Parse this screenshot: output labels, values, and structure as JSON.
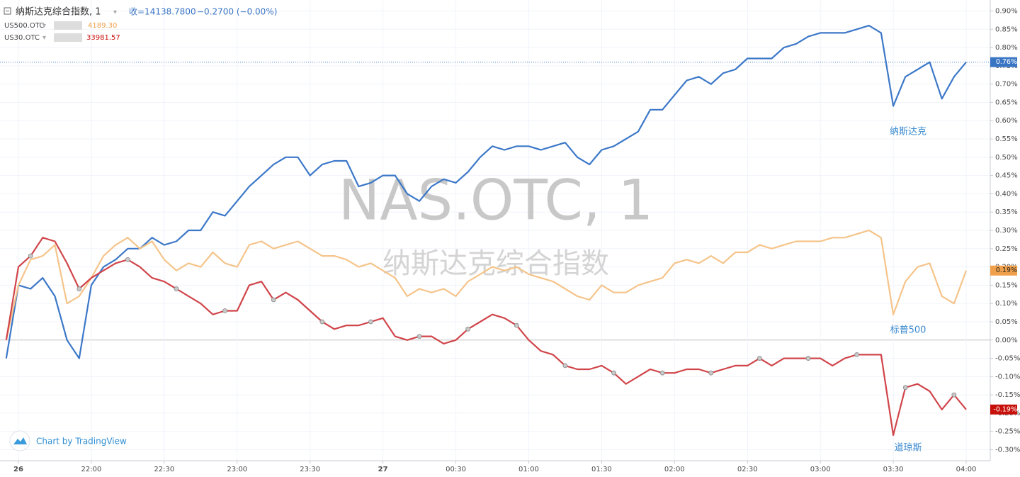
{
  "chart_data": {
    "type": "line",
    "watermark": "NAS.OTC, 1",
    "watermark_subtitle": "纳斯达克综合指数",
    "legend_rows": [
      {
        "symbol": "纳斯达克综合指数, 1",
        "quote": "收=14138.7800",
        "change": "−0.2700 (−0.00%)"
      },
      {
        "symbol": "US500.OTC",
        "quote": "4189.30"
      },
      {
        "symbol": "US30.OTC",
        "quote": "33981.57"
      }
    ],
    "credit": "Chart by TradingView",
    "x": [
      "21:25",
      "21:30",
      "21:35",
      "21:40",
      "21:45",
      "21:50",
      "21:55",
      "22:00",
      "22:05",
      "22:10",
      "22:15",
      "22:20",
      "22:25",
      "22:30",
      "22:35",
      "22:40",
      "22:45",
      "22:50",
      "22:55",
      "23:00",
      "23:05",
      "23:10",
      "23:15",
      "23:20",
      "23:25",
      "23:30",
      "23:35",
      "23:40",
      "23:45",
      "23:50",
      "23:55",
      "00:00",
      "00:05",
      "00:10",
      "00:15",
      "00:20",
      "00:25",
      "00:30",
      "00:35",
      "00:40",
      "00:45",
      "00:50",
      "00:55",
      "01:00",
      "01:05",
      "01:10",
      "01:15",
      "01:20",
      "01:25",
      "01:30",
      "01:35",
      "01:40",
      "01:45",
      "01:50",
      "01:55",
      "02:00",
      "02:05",
      "02:10",
      "02:15",
      "02:20",
      "02:25",
      "02:30",
      "02:35",
      "02:40",
      "02:45",
      "02:50",
      "02:55",
      "03:00",
      "03:05",
      "03:10",
      "03:15",
      "03:20",
      "03:25",
      "03:30",
      "03:35",
      "03:40",
      "03:45",
      "03:50",
      "03:55",
      "04:00"
    ],
    "series": [
      {
        "name": "纳斯达克",
        "color": "#3c78c8",
        "last_value_label": "0.76%",
        "values": [
          -0.05,
          0.15,
          0.14,
          0.17,
          0.12,
          0.0,
          -0.05,
          0.15,
          0.2,
          0.22,
          0.25,
          0.25,
          0.28,
          0.26,
          0.27,
          0.3,
          0.3,
          0.35,
          0.34,
          0.38,
          0.42,
          0.45,
          0.48,
          0.5,
          0.5,
          0.45,
          0.48,
          0.49,
          0.49,
          0.42,
          0.43,
          0.45,
          0.45,
          0.4,
          0.38,
          0.42,
          0.44,
          0.43,
          0.46,
          0.5,
          0.53,
          0.52,
          0.53,
          0.53,
          0.52,
          0.53,
          0.54,
          0.5,
          0.48,
          0.52,
          0.53,
          0.55,
          0.57,
          0.63,
          0.63,
          0.67,
          0.71,
          0.72,
          0.7,
          0.73,
          0.74,
          0.77,
          0.77,
          0.77,
          0.8,
          0.81,
          0.83,
          0.84,
          0.84,
          0.84,
          0.85,
          0.86,
          0.84,
          0.64,
          0.72,
          0.74,
          0.76,
          0.66,
          0.72,
          0.76
        ]
      },
      {
        "name": "标普500",
        "color": "#f5c48a",
        "last_value_label": "0.19%",
        "values": [
          0.0,
          0.15,
          0.22,
          0.23,
          0.26,
          0.1,
          0.12,
          0.17,
          0.23,
          0.26,
          0.28,
          0.25,
          0.27,
          0.22,
          0.19,
          0.21,
          0.2,
          0.24,
          0.21,
          0.2,
          0.26,
          0.27,
          0.25,
          0.26,
          0.27,
          0.25,
          0.23,
          0.23,
          0.22,
          0.2,
          0.21,
          0.19,
          0.17,
          0.12,
          0.14,
          0.13,
          0.14,
          0.12,
          0.16,
          0.18,
          0.2,
          0.19,
          0.2,
          0.18,
          0.17,
          0.16,
          0.14,
          0.12,
          0.11,
          0.15,
          0.13,
          0.13,
          0.15,
          0.16,
          0.17,
          0.21,
          0.22,
          0.21,
          0.23,
          0.21,
          0.24,
          0.24,
          0.26,
          0.25,
          0.26,
          0.27,
          0.27,
          0.27,
          0.28,
          0.28,
          0.29,
          0.3,
          0.28,
          0.07,
          0.16,
          0.2,
          0.21,
          0.12,
          0.1,
          0.19
        ]
      },
      {
        "name": "道琼斯",
        "color": "#d0454a",
        "last_value_label": "-0.19%",
        "values": [
          0.0,
          0.2,
          0.23,
          0.28,
          0.27,
          0.21,
          0.14,
          0.17,
          0.19,
          0.21,
          0.22,
          0.2,
          0.17,
          0.16,
          0.14,
          0.12,
          0.1,
          0.07,
          0.08,
          0.08,
          0.15,
          0.16,
          0.11,
          0.13,
          0.11,
          0.08,
          0.05,
          0.03,
          0.04,
          0.04,
          0.05,
          0.06,
          0.01,
          0.0,
          0.01,
          0.01,
          -0.01,
          0.0,
          0.03,
          0.05,
          0.07,
          0.06,
          0.04,
          0.0,
          -0.03,
          -0.04,
          -0.07,
          -0.08,
          -0.08,
          -0.07,
          -0.09,
          -0.12,
          -0.1,
          -0.08,
          -0.09,
          -0.09,
          -0.08,
          -0.08,
          -0.09,
          -0.08,
          -0.07,
          -0.07,
          -0.05,
          -0.07,
          -0.05,
          -0.05,
          -0.05,
          -0.05,
          -0.07,
          -0.05,
          -0.04,
          -0.04,
          -0.04,
          -0.26,
          -0.13,
          -0.12,
          -0.14,
          -0.19,
          -0.15,
          -0.19
        ]
      }
    ],
    "xticks": [
      {
        "value": "21:30",
        "label": "26"
      },
      "22:00",
      "22:30",
      "23:00",
      "23:30",
      {
        "value": "00:00",
        "label": "27"
      },
      "00:30",
      "01:00",
      "01:30",
      "02:00",
      "02:30",
      "03:00",
      "03:30",
      "04:00"
    ],
    "ylim": [
      -0.33,
      0.93
    ],
    "yticks": [
      {
        "value": 0.9,
        "label": "0.90%"
      },
      {
        "value": 0.85,
        "label": "0.85%"
      },
      {
        "value": 0.8,
        "label": "0.80%"
      },
      {
        "value": 0.75,
        "label": "0.75%"
      },
      {
        "value": 0.7,
        "label": "0.70%"
      },
      {
        "value": 0.65,
        "label": "0.65%"
      },
      {
        "value": 0.6,
        "label": "0.60%"
      },
      {
        "value": 0.55,
        "label": "0.55%"
      },
      {
        "value": 0.5,
        "label": "0.50%"
      },
      {
        "value": 0.45,
        "label": "0.45%"
      },
      {
        "value": 0.4,
        "label": "0.40%"
      },
      {
        "value": 0.35,
        "label": "0.35%"
      },
      {
        "value": 0.3,
        "label": "0.30%"
      },
      {
        "value": 0.25,
        "label": "0.25%"
      },
      {
        "value": 0.2,
        "label": "0.20%"
      },
      {
        "value": 0.15,
        "label": "0.15%"
      },
      {
        "value": 0.1,
        "label": "0.10%"
      },
      {
        "value": 0.05,
        "label": "0.05%"
      },
      {
        "value": 0,
        "label": "0.00%"
      },
      {
        "value": -0.05,
        "label": "-0.05%"
      },
      {
        "value": -0.1,
        "label": "-0.10%"
      },
      {
        "value": -0.15,
        "label": "-0.15%"
      },
      {
        "value": -0.2,
        "label": "-0.20%"
      },
      {
        "value": -0.25,
        "label": "-0.25%"
      },
      {
        "value": -0.3,
        "label": "-0.30%"
      }
    ],
    "grid": true
  }
}
